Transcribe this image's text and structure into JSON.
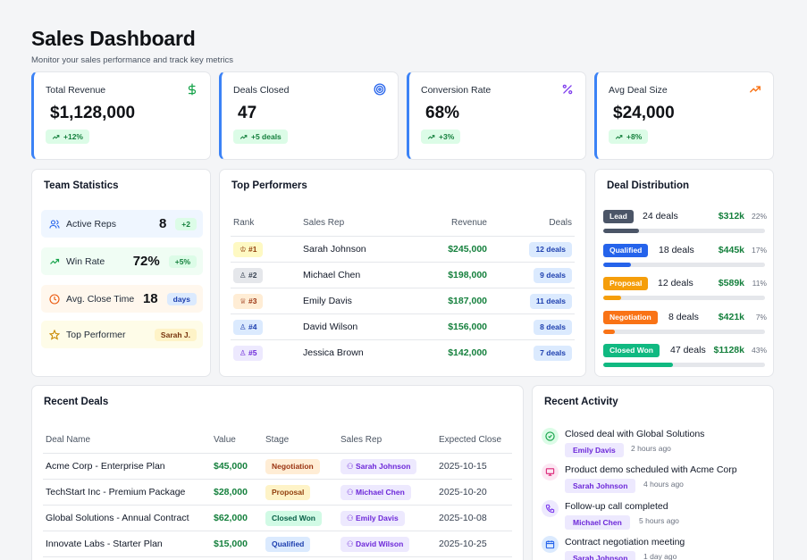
{
  "header": {
    "title": "Sales Dashboard",
    "subtitle": "Monitor your sales performance and track key metrics"
  },
  "kpis": [
    {
      "label": "Total Revenue",
      "value": "$1,128,000",
      "delta": "+12%",
      "icon": "dollar-icon"
    },
    {
      "label": "Deals Closed",
      "value": "47",
      "delta": "+5 deals",
      "icon": "target-icon"
    },
    {
      "label": "Conversion Rate",
      "value": "68%",
      "delta": "+3%",
      "icon": "percent-icon"
    },
    {
      "label": "Avg Deal Size",
      "value": "$24,000",
      "delta": "+8%",
      "icon": "trending-up-icon"
    }
  ],
  "team": {
    "title": "Team Statistics",
    "rows": [
      {
        "label": "Active Reps",
        "value": "8",
        "badge": "+2"
      },
      {
        "label": "Win Rate",
        "value": "72%",
        "badge": "+5%"
      },
      {
        "label": "Avg. Close Time",
        "value": "18",
        "badge": "days"
      },
      {
        "label": "Top Performer",
        "value": "",
        "badge": "Sarah J."
      }
    ]
  },
  "performers": {
    "title": "Top Performers",
    "headers": {
      "rank": "Rank",
      "rep": "Sales Rep",
      "revenue": "Revenue",
      "deals": "Deals"
    },
    "rows": [
      {
        "rank": "#1",
        "rep": "Sarah Johnson",
        "revenue": "$245,000",
        "deals": "12 deals"
      },
      {
        "rank": "#2",
        "rep": "Michael Chen",
        "revenue": "$198,000",
        "deals": "9 deals"
      },
      {
        "rank": "#3",
        "rep": "Emily Davis",
        "revenue": "$187,000",
        "deals": "11 deals"
      },
      {
        "rank": "#4",
        "rep": "David Wilson",
        "revenue": "$156,000",
        "deals": "8 deals"
      },
      {
        "rank": "#5",
        "rep": "Jessica Brown",
        "revenue": "$142,000",
        "deals": "7 deals"
      }
    ]
  },
  "distribution": {
    "title": "Deal Distribution",
    "rows": [
      {
        "stage": "Lead",
        "count": "24 deals",
        "amount": "$312k",
        "pct": "22%",
        "fraction": 0.22,
        "color": "#4b5567"
      },
      {
        "stage": "Qualified",
        "count": "18 deals",
        "amount": "$445k",
        "pct": "17%",
        "fraction": 0.17,
        "color": "#2563eb"
      },
      {
        "stage": "Proposal",
        "count": "12 deals",
        "amount": "$589k",
        "pct": "11%",
        "fraction": 0.11,
        "color": "#f59e0b"
      },
      {
        "stage": "Negotiation",
        "count": "8 deals",
        "amount": "$421k",
        "pct": "7%",
        "fraction": 0.07,
        "color": "#f97316"
      },
      {
        "stage": "Closed Won",
        "count": "47 deals",
        "amount": "$1128k",
        "pct": "43%",
        "fraction": 0.43,
        "color": "#10b981"
      }
    ]
  },
  "recent_deals": {
    "title": "Recent Deals",
    "headers": {
      "name": "Deal Name",
      "value": "Value",
      "stage": "Stage",
      "rep": "Sales Rep",
      "close": "Expected Close"
    },
    "rows": [
      {
        "name": "Acme Corp - Enterprise Plan",
        "value": "$45,000",
        "stage": "Negotiation",
        "rep": "Sarah Johnson",
        "close": "2025-10-15"
      },
      {
        "name": "TechStart Inc - Premium Package",
        "value": "$28,000",
        "stage": "Proposal",
        "rep": "Michael Chen",
        "close": "2025-10-20"
      },
      {
        "name": "Global Solutions - Annual Contract",
        "value": "$62,000",
        "stage": "Closed Won",
        "rep": "Emily Davis",
        "close": "2025-10-08"
      },
      {
        "name": "Innovate Labs - Starter Plan",
        "value": "$15,000",
        "stage": "Qualified",
        "rep": "David Wilson",
        "close": "2025-10-25"
      }
    ]
  },
  "activity": {
    "title": "Recent Activity",
    "items": [
      {
        "title": "Closed deal with Global Solutions",
        "who": "Emily Davis",
        "time": "2 hours ago",
        "icon": "check-circle-icon"
      },
      {
        "title": "Product demo scheduled with Acme Corp",
        "who": "Sarah Johnson",
        "time": "4 hours ago",
        "icon": "presentation-icon"
      },
      {
        "title": "Follow-up call completed",
        "who": "Michael Chen",
        "time": "5 hours ago",
        "icon": "phone-icon"
      },
      {
        "title": "Contract negotiation meeting",
        "who": "Sarah Johnson",
        "time": "1 day ago",
        "icon": "calendar-icon"
      }
    ]
  }
}
